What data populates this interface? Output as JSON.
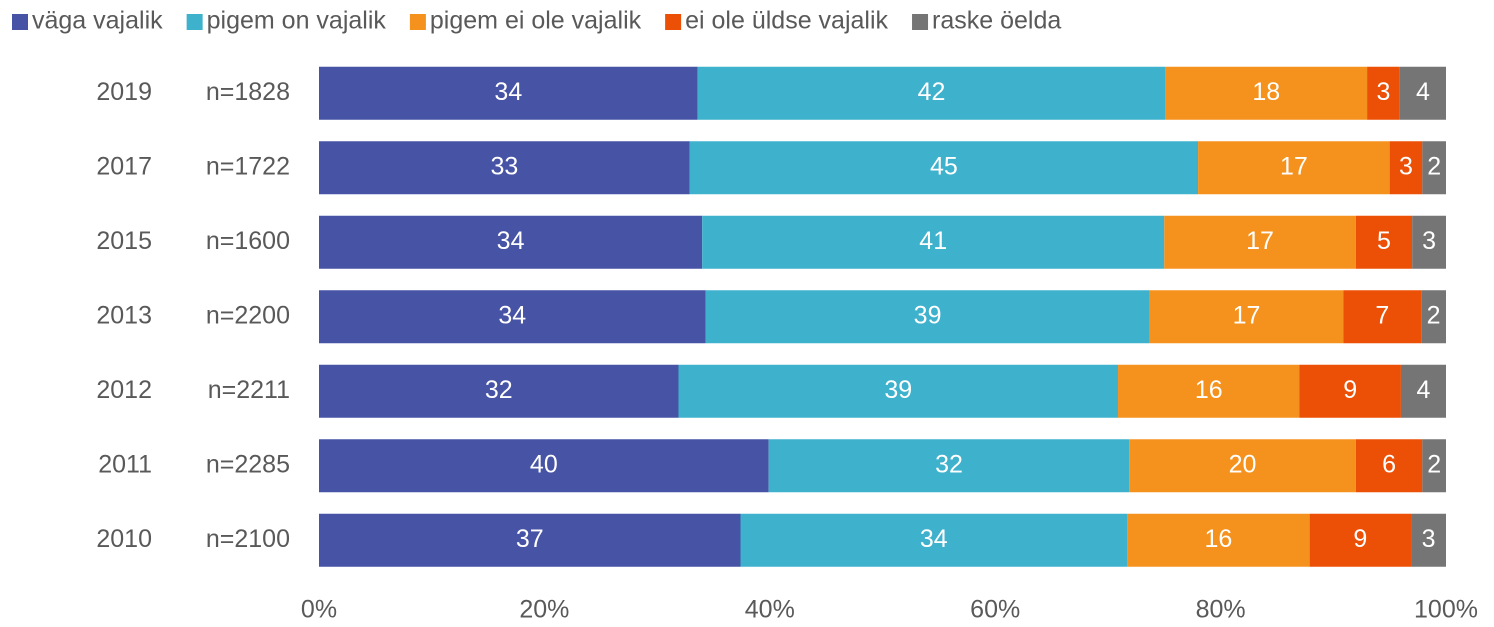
{
  "chart_data": {
    "type": "stacked_bar_horizontal",
    "categories": [
      "2019",
      "2017",
      "2015",
      "2013",
      "2012",
      "2011",
      "2010"
    ],
    "sample_sizes": [
      "n=1828",
      "n=1722",
      "n=1600",
      "n=2200",
      "n=2211",
      "n=2285",
      "n=2100"
    ],
    "series": [
      {
        "name": "väga vajalik",
        "color": "#4753a5",
        "values": [
          33.6,
          32.9,
          34.0,
          34.3,
          31.9,
          39.9,
          37.4
        ],
        "value_labels": [
          "34",
          "33",
          "34",
          "34",
          "32",
          "40",
          "37"
        ]
      },
      {
        "name": "pigem on vajalik",
        "color": "#3eb1cc",
        "values": [
          41.5,
          45.1,
          41.0,
          39.4,
          39.0,
          32.0,
          34.3
        ],
        "value_labels": [
          "42",
          "45",
          "41",
          "39",
          "39",
          "32",
          "34"
        ]
      },
      {
        "name": "pigem ei ole vajalik",
        "color": "#f5921e",
        "values": [
          17.9,
          17.0,
          17.0,
          17.2,
          16.1,
          20.1,
          16.2
        ],
        "value_labels": [
          "18",
          "17",
          "17",
          "17",
          "16",
          "20",
          "16"
        ]
      },
      {
        "name": "ei ole üldse vajalik",
        "color": "#eb5006",
        "values": [
          2.9,
          2.9,
          5.0,
          6.9,
          9.0,
          5.9,
          9.0
        ],
        "value_labels": [
          "3",
          "3",
          "5",
          "7",
          "9",
          "6",
          "9"
        ]
      },
      {
        "name": "raske öelda",
        "color": "#757575",
        "values": [
          4.1,
          2.1,
          3.0,
          2.2,
          4.0,
          2.1,
          3.1
        ],
        "value_labels": [
          "4",
          "2",
          "3",
          "2",
          "4",
          "2",
          "3"
        ]
      }
    ],
    "xlim": [
      0,
      100
    ],
    "xticks": [
      {
        "value": 0,
        "label": "0%"
      },
      {
        "value": 20,
        "label": "20%"
      },
      {
        "value": 40,
        "label": "40%"
      },
      {
        "value": 60,
        "label": "60%"
      },
      {
        "value": 80,
        "label": "80%"
      },
      {
        "value": 100,
        "label": "100%"
      }
    ],
    "legend": "top"
  }
}
